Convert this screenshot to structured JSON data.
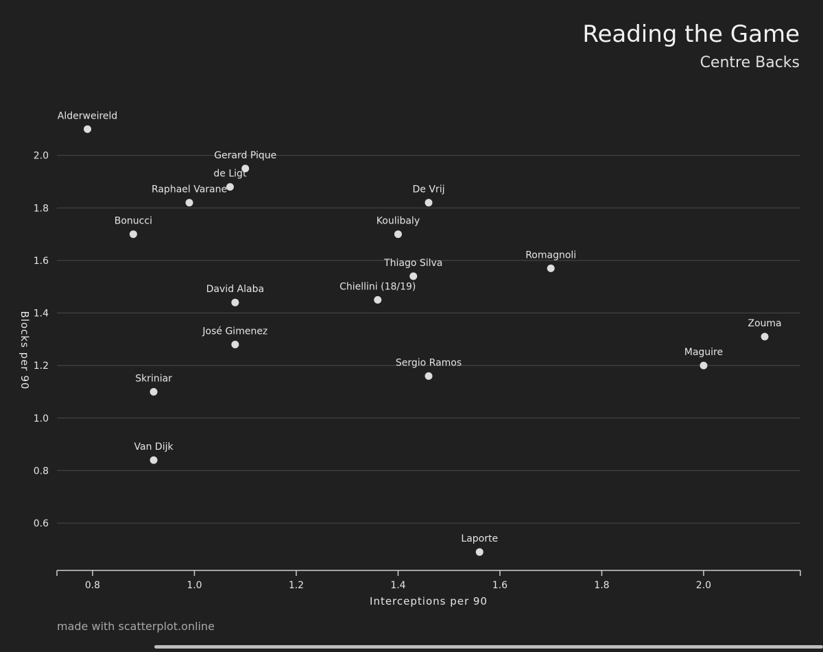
{
  "chart_data": {
    "type": "scatter",
    "title": "Reading the Game",
    "subtitle": "Centre Backs",
    "xlabel": "Interceptions per 90",
    "ylabel": "Blocks per 90",
    "xlim": [
      0.73,
      2.19
    ],
    "ylim": [
      0.42,
      2.2
    ],
    "xticks": [
      "0.8",
      "1.0",
      "1.2",
      "1.4",
      "1.6",
      "1.8",
      "2.0"
    ],
    "yticks": [
      "0.6",
      "0.8",
      "1.0",
      "1.2",
      "1.4",
      "1.6",
      "1.8",
      "2.0"
    ],
    "grid": true,
    "points": [
      {
        "label": "Alderweireld",
        "x": 0.79,
        "y": 2.1
      },
      {
        "label": "Gerard Pique",
        "x": 1.1,
        "y": 1.95
      },
      {
        "label": "de Ligt",
        "x": 1.07,
        "y": 1.88
      },
      {
        "label": "Raphael Varane",
        "x": 0.99,
        "y": 1.82
      },
      {
        "label": "De Vrij",
        "x": 1.46,
        "y": 1.82
      },
      {
        "label": "Bonucci",
        "x": 0.88,
        "y": 1.7
      },
      {
        "label": "Koulibaly",
        "x": 1.4,
        "y": 1.7
      },
      {
        "label": "Romagnoli",
        "x": 1.7,
        "y": 1.57
      },
      {
        "label": "Thiago Silva",
        "x": 1.43,
        "y": 1.54
      },
      {
        "label": "Chiellini (18/19)",
        "x": 1.36,
        "y": 1.45
      },
      {
        "label": "David Alaba",
        "x": 1.08,
        "y": 1.44
      },
      {
        "label": "Zouma",
        "x": 2.12,
        "y": 1.31
      },
      {
        "label": "José Gimenez",
        "x": 1.08,
        "y": 1.28
      },
      {
        "label": "Maguire",
        "x": 2.0,
        "y": 1.2
      },
      {
        "label": "Sergio Ramos",
        "x": 1.46,
        "y": 1.16
      },
      {
        "label": "Skriniar",
        "x": 0.92,
        "y": 1.1
      },
      {
        "label": "Van Dijk",
        "x": 0.92,
        "y": 0.84
      },
      {
        "label": "Laporte",
        "x": 1.56,
        "y": 0.49
      }
    ]
  },
  "footer": {
    "credit": "made with scatterplot.online"
  },
  "colors": {
    "background": "#202020",
    "point": "#dddddd",
    "grid": "#4a4a4a",
    "axis": "#d0d0d0",
    "text": "#e6e6e6"
  }
}
